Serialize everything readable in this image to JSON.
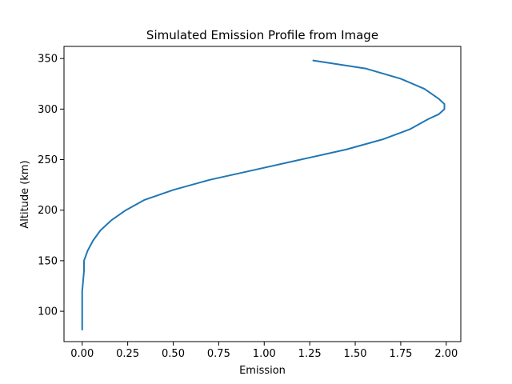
{
  "chart_data": {
    "type": "line",
    "title": "Simulated Emission Profile from Image",
    "xlabel": "Emission",
    "ylabel": "Altitude (km)",
    "xlim": [
      -0.1,
      2.08
    ],
    "ylim": [
      70,
      362
    ],
    "xticks": [
      0.0,
      0.25,
      0.5,
      0.75,
      1.0,
      1.25,
      1.5,
      1.75,
      2.0
    ],
    "xtick_labels": [
      "0.00",
      "0.25",
      "0.50",
      "0.75",
      "1.00",
      "1.25",
      "1.50",
      "1.75",
      "2.00"
    ],
    "yticks": [
      100,
      150,
      200,
      250,
      300,
      350
    ],
    "ytick_labels": [
      "100",
      "150",
      "200",
      "250",
      "300",
      "350"
    ],
    "grid": false,
    "series": [
      {
        "color": "#1f77b4",
        "x": [
          0.0,
          0.0,
          0.0,
          0.01,
          0.01,
          0.03,
          0.06,
          0.1,
          0.16,
          0.24,
          0.34,
          0.5,
          0.7,
          0.95,
          1.2,
          1.45,
          1.65,
          1.8,
          1.9,
          1.96,
          1.99,
          1.99,
          1.96,
          1.88,
          1.75,
          1.56,
          1.27
        ],
        "y": [
          82,
          100,
          120,
          140,
          150,
          160,
          170,
          180,
          190,
          200,
          210,
          220,
          230,
          240,
          250,
          260,
          270,
          280,
          290,
          295,
          300,
          305,
          310,
          320,
          330,
          340,
          348
        ]
      }
    ]
  }
}
